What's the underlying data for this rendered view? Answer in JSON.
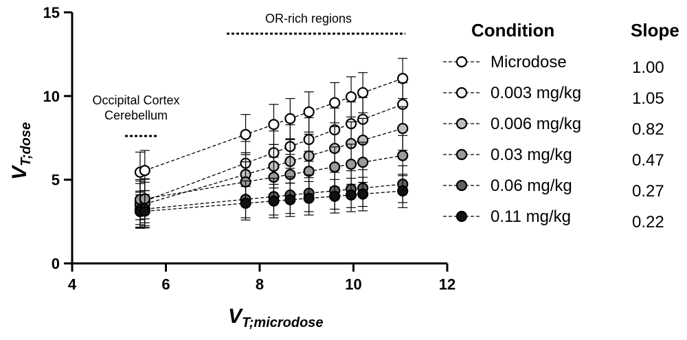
{
  "chart_data": {
    "type": "scatter",
    "xlabel": {
      "main": "V",
      "sub": "T;microdose"
    },
    "ylabel": {
      "main": "V",
      "sub": "T;dose"
    },
    "xlim": [
      4,
      12
    ],
    "ylim": [
      0,
      15
    ],
    "x_ticks": [
      4,
      6,
      8,
      10,
      12
    ],
    "y_ticks": [
      0,
      5,
      10,
      15
    ],
    "grid": false,
    "legend": {
      "position": "right",
      "header_condition": "Condition",
      "header_slope": "Slope"
    },
    "annotations": {
      "low_region": [
        "Occipital Cortex",
        "Cerebellum"
      ],
      "high_region": "OR-rich regions"
    },
    "x": [
      5.45,
      5.55,
      7.7,
      8.3,
      8.65,
      9.05,
      9.6,
      9.95,
      10.2,
      11.05
    ],
    "series": [
      {
        "name": "Microdose",
        "slope": "1.00",
        "fill": "#ffffff",
        "intercept": 0.0,
        "err": 1.2
      },
      {
        "name": "0.003 mg/kg",
        "slope": "1.05",
        "fill": "#f2f2f2",
        "intercept": -2.1,
        "err": 1.3
      },
      {
        "name": "0.006 mg/kg",
        "slope": "0.82",
        "fill": "#bfbfbf",
        "intercept": -1.0,
        "err": 1.3
      },
      {
        "name": "0.03 mg/kg",
        "slope": "0.47",
        "fill": "#9a9a9a",
        "intercept": 1.25,
        "err": 1.2
      },
      {
        "name": "0.06 mg/kg",
        "slope": "0.27",
        "fill": "#5f5f5f",
        "intercept": 1.75,
        "err": 1.1
      },
      {
        "name": "0.11 mg/kg",
        "slope": "0.22",
        "fill": "#111111",
        "intercept": 1.9,
        "err": 1.0
      }
    ]
  }
}
